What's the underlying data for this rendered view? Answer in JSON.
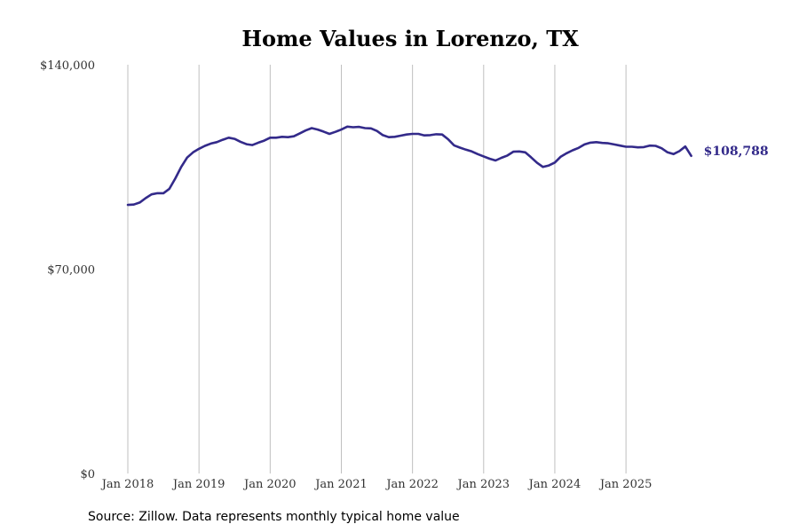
{
  "chart_data": {
    "type": "line",
    "title": "Home Values in Lorenzo, TX",
    "xlabel": "",
    "ylabel": "",
    "x_start": "2018-01",
    "x_ticks": [
      "Jan 2018",
      "Jan 2019",
      "Jan 2020",
      "Jan 2021",
      "Jan 2022",
      "Jan 2023",
      "Jan 2024",
      "Jan 2025"
    ],
    "y_ticks": [
      "$0",
      "$70,000",
      "$140,000"
    ],
    "y_tick_values": [
      0,
      70000,
      140000
    ],
    "ylim": [
      0,
      140000
    ],
    "grid": "vertical",
    "line_color": "#332a8a",
    "end_label": "$108,788",
    "series": [
      {
        "name": "Typical home value",
        "values": [
          92000,
          92100,
          92800,
          94300,
          95600,
          96000,
          96000,
          97500,
          101000,
          105000,
          108200,
          110000,
          111200,
          112200,
          113000,
          113500,
          114300,
          115000,
          114600,
          113600,
          112800,
          112500,
          113300,
          114000,
          115000,
          115000,
          115300,
          115200,
          115500,
          116500,
          117500,
          118300,
          117800,
          117100,
          116300,
          117000,
          117800,
          118800,
          118600,
          118700,
          118300,
          118200,
          117300,
          115900,
          115200,
          115300,
          115700,
          116100,
          116300,
          116300,
          115800,
          115900,
          116200,
          116100,
          114500,
          112400,
          111600,
          110900,
          110300,
          109400,
          108600,
          107800,
          107200,
          108100,
          108900,
          110200,
          110300,
          110000,
          108300,
          106400,
          105000,
          105500,
          106500,
          108500,
          109700,
          110700,
          111500,
          112700,
          113300,
          113500,
          113200,
          113100,
          112700,
          112300,
          111900,
          111900,
          111700,
          111800,
          112300,
          112200,
          111400,
          110000,
          109400,
          110400,
          112000,
          108788
        ]
      }
    ]
  },
  "source_note": "Source: Zillow. Data represents monthly typical home value"
}
